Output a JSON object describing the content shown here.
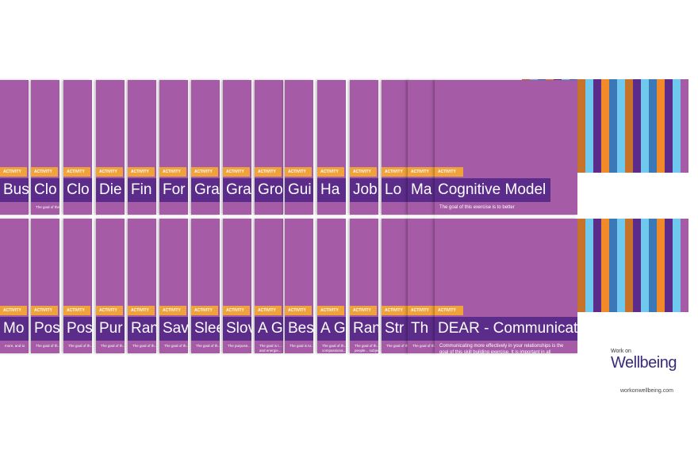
{
  "tag_label": "ACTIVITY",
  "top_row": [
    {
      "title": "Busi",
      "body": ""
    },
    {
      "title": "Clo",
      "body": "The goal of the e... can make you th..."
    },
    {
      "title": "Clo",
      "body": ""
    },
    {
      "title": "Die",
      "body": ""
    },
    {
      "title": "Fin",
      "body": ""
    },
    {
      "title": "For",
      "body": ""
    },
    {
      "title": "Gra",
      "body": ""
    },
    {
      "title": "Gra",
      "body": ""
    },
    {
      "title": "Gro",
      "body": ""
    },
    {
      "title": "Gui",
      "body": ""
    },
    {
      "title": "Ha",
      "body": ""
    },
    {
      "title": "Job",
      "body": ""
    },
    {
      "title": "Lo",
      "body": ""
    },
    {
      "title": "Ma",
      "body": ""
    },
    {
      "title": "Cognitive Model",
      "body": "The goal of this exercise is to better"
    }
  ],
  "bottom_row": [
    {
      "title": "Mo",
      "body": "more, and to"
    },
    {
      "title": "Pos",
      "body": "The goal of th... your frequent... by encouragi... emotion lang..."
    },
    {
      "title": "Pos",
      "body": "The goal of th... think about w... means to you... your leadershi..."
    },
    {
      "title": "Pur",
      "body": "The goal of th... you to think a... purpose and... live your life..."
    },
    {
      "title": "Ran",
      "body": "The goal of th... more familiar... character str..."
    },
    {
      "title": "Sav",
      "body": "The goal of th... happiness an... experiences..."
    },
    {
      "title": "Slee",
      "body": "The goal of th... your sleep hy..."
    },
    {
      "title": "Slov",
      "body": "The purpose... slowness eve... living approa..."
    },
    {
      "title": "A G",
      "body": "The goal is t... - a day infu... and relation... strengths in... important t... and energie..."
    },
    {
      "title": "Bes",
      "body": "The goal is to... of expecting t... Own Milewicz..."
    },
    {
      "title": "A G",
      "body": "The goal of th... intrage of a c... concrete. The... relate to wha... compassiona... with this."
    },
    {
      "title": "Ran",
      "body": "The goal of th... wellbeing by... acts of kindn... of one's own... other people... subjective ha..."
    },
    {
      "title": "Str",
      "body": "The goal of th... identify and... strengths, th... more."
    },
    {
      "title": "Th",
      "body": "The goal of th... gratitude... happier ev..."
    },
    {
      "title": "DEAR - Communication",
      "body": "Communicating more effectively in your relationships is the goal of this skill building exercise. It is important in all relationships that we feel capable of communicating with others about our expectations for the relationship."
    }
  ],
  "stripe_colors": [
    "#c8732a",
    "#6fc8ee",
    "#3a78b8",
    "#f28a2a",
    "#5b2c8a",
    "#6fc8ee",
    "#3a78b8",
    "#c8732a",
    "#6fc8ee",
    "#5b2c8a",
    "#f28a2a",
    "#3a78b8",
    "#6fc8ee",
    "#c8732a",
    "#5b2c8a",
    "#6fc8ee",
    "#3a78b8",
    "#f28a2a",
    "#5b2c8a",
    "#6fc8ee",
    "#a55ba6"
  ],
  "brand": {
    "work_on": "Work on",
    "wellbeing": "Wellbeing",
    "url": "workonwellbeing.com"
  },
  "colors": {
    "card": "#a55ba6",
    "tag": "#f0a33a",
    "title_bar": "#5b2c8a"
  }
}
